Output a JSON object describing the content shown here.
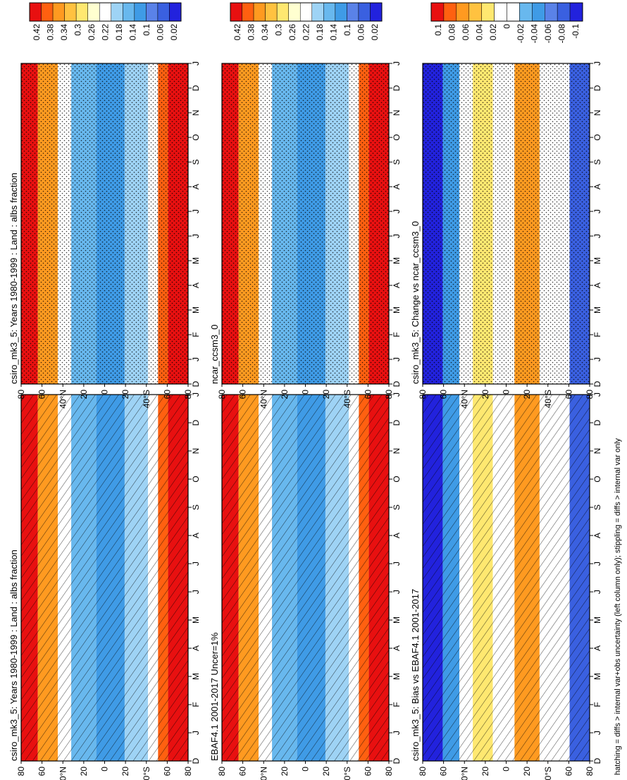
{
  "footer_note": "hatching = diffs > internal var+obs uncertainty (left column only); stippling = diffs > internal var only",
  "months": [
    "D",
    "J",
    "F",
    "M",
    "A",
    "M",
    "J",
    "J",
    "A",
    "S",
    "O",
    "N",
    "D",
    "J"
  ],
  "lat_labels": [
    "80",
    "60",
    "40",
    "20",
    "0",
    "20",
    "40",
    "60",
    "80"
  ],
  "lat_hemi": [
    "",
    "",
    "N",
    "",
    "",
    "",
    "S",
    "",
    ""
  ],
  "colors": {
    "abs": [
      "#2222dd",
      "#3a60e0",
      "#5a82e8",
      "#3f9be6",
      "#68b8ee",
      "#9ed3f5",
      "#ffffff",
      "#ffffd0",
      "#ffe870",
      "#ffc240",
      "#ff9a20",
      "#ff6010",
      "#e81010"
    ],
    "diff": [
      "#2222dd",
      "#3a60e0",
      "#5a82e8",
      "#3f9be6",
      "#68b8ee",
      "#ffffff",
      "#ffffff",
      "#ffe870",
      "#ffc240",
      "#ff9a20",
      "#ff6010",
      "#e81010"
    ]
  },
  "chart_data": [
    {
      "type": "heatmap",
      "title": "csiro_mk3_5: Years 1980-1999 : Land : albs fraction",
      "colorbar_ticks": [
        "0.42",
        "0.38",
        "0.34",
        "0.3",
        "0.26",
        "0.22",
        "0.18",
        "0.14",
        "0.1",
        "0.06",
        "0.02"
      ],
      "colorscale": "abs",
      "overlay": "hatching",
      "x": [
        "D",
        "J",
        "F",
        "M",
        "A",
        "M",
        "J",
        "J",
        "A",
        "S",
        "O",
        "N",
        "D",
        "J"
      ],
      "y": [
        "80N",
        "60N",
        "40N",
        "20N",
        "0",
        "20S",
        "40S",
        "60S",
        "80S"
      ]
    },
    {
      "type": "heatmap",
      "title": "csiro_mk3_5: Years 1980-1999 : Land : albs fraction",
      "colorbar_ticks": [
        "0.42",
        "0.38",
        "0.34",
        "0.3",
        "0.26",
        "0.22",
        "0.18",
        "0.14",
        "0.1",
        "0.06",
        "0.02"
      ],
      "colorscale": "abs",
      "overlay": "stippling",
      "x": [
        "D",
        "J",
        "F",
        "M",
        "A",
        "M",
        "J",
        "J",
        "A",
        "S",
        "O",
        "N",
        "D",
        "J"
      ],
      "y": [
        "80N",
        "60N",
        "40N",
        "20N",
        "0",
        "20S",
        "40S",
        "60S",
        "80S"
      ]
    },
    {
      "type": "heatmap",
      "title": "EBAF4.1 2001-2017 Uncer=1%",
      "colorbar_ticks": [
        "0.42",
        "0.38",
        "0.34",
        "0.3",
        "0.26",
        "0.22",
        "0.18",
        "0.14",
        "0.1",
        "0.06",
        "0.02"
      ],
      "colorscale": "abs",
      "overlay": "hatching",
      "x": [
        "D",
        "J",
        "F",
        "M",
        "A",
        "M",
        "J",
        "J",
        "A",
        "S",
        "O",
        "N",
        "D",
        "J"
      ],
      "y": [
        "80N",
        "60N",
        "40N",
        "20N",
        "0",
        "20S",
        "40S",
        "60S",
        "80S"
      ]
    },
    {
      "type": "heatmap",
      "title": "ncar_ccsm3_0",
      "colorbar_ticks": [
        "0.42",
        "0.38",
        "0.34",
        "0.3",
        "0.26",
        "0.22",
        "0.18",
        "0.14",
        "0.1",
        "0.06",
        "0.02"
      ],
      "colorscale": "abs",
      "overlay": "stippling",
      "x": [
        "D",
        "J",
        "F",
        "M",
        "A",
        "M",
        "J",
        "J",
        "A",
        "S",
        "O",
        "N",
        "D",
        "J"
      ],
      "y": [
        "80N",
        "60N",
        "40N",
        "20N",
        "0",
        "20S",
        "40S",
        "60S",
        "80S"
      ]
    },
    {
      "type": "heatmap",
      "title": "csiro_mk3_5: Bias vs EBAF4.1 2001-2017",
      "colorbar_ticks": [
        "0.1",
        "0.08",
        "0.06",
        "0.04",
        "0.02",
        "0",
        "-0.02",
        "-0.04",
        "-0.06",
        "-0.08",
        "-0.1"
      ],
      "colorscale": "diff",
      "overlay": "hatching",
      "x": [
        "D",
        "J",
        "F",
        "M",
        "A",
        "M",
        "J",
        "J",
        "A",
        "S",
        "O",
        "N",
        "D",
        "J"
      ],
      "y": [
        "80N",
        "60N",
        "40N",
        "20N",
        "0",
        "20S",
        "40S",
        "60S",
        "80S"
      ]
    },
    {
      "type": "heatmap",
      "title": "csiro_mk3_5: Change vs ncar_ccsm3_0",
      "colorbar_ticks": [
        "0.1",
        "0.08",
        "0.06",
        "0.04",
        "0.02",
        "0",
        "-0.02",
        "-0.04",
        "-0.06",
        "-0.08",
        "-0.1"
      ],
      "colorscale": "diff",
      "overlay": "stippling",
      "x": [
        "D",
        "J",
        "F",
        "M",
        "A",
        "M",
        "J",
        "J",
        "A",
        "S",
        "O",
        "N",
        "D",
        "J"
      ],
      "y": [
        "80N",
        "60N",
        "40N",
        "20N",
        "0",
        "20S",
        "40S",
        "60S",
        "80S"
      ]
    }
  ]
}
